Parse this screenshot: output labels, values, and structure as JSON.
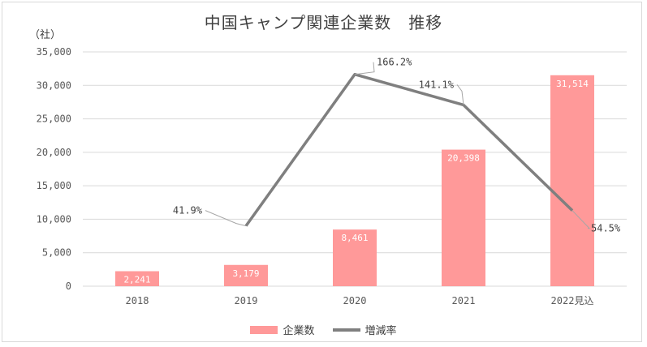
{
  "chart_data": {
    "type": "bar",
    "title": "中国キャンプ関連企業数　推移",
    "unit_label": "（社）",
    "categories": [
      "2018",
      "2019",
      "2020",
      "2021",
      "2022見込"
    ],
    "series": [
      {
        "name": "企業数",
        "kind": "bar",
        "values": [
          2241,
          3179,
          8461,
          20398,
          31514
        ],
        "labels": [
          "2,241",
          "3,179",
          "8,461",
          "20,398",
          "31,514"
        ]
      },
      {
        "name": "増減率",
        "kind": "line",
        "values": [
          null,
          41.9,
          166.2,
          141.1,
          54.5
        ],
        "labels": [
          "",
          "41.9%",
          "166.2%",
          "141.1%",
          "54.5%"
        ]
      }
    ],
    "yticks": [
      "0",
      "5,000",
      "10,000",
      "15,000",
      "20,000",
      "25,000",
      "30,000",
      "35,000"
    ],
    "ylim": [
      0,
      35000
    ],
    "grid": true,
    "legend_position": "bottom",
    "colors": {
      "bar": "#ff9999",
      "line": "#7f7f7f",
      "grid": "#d9d9d9"
    }
  }
}
